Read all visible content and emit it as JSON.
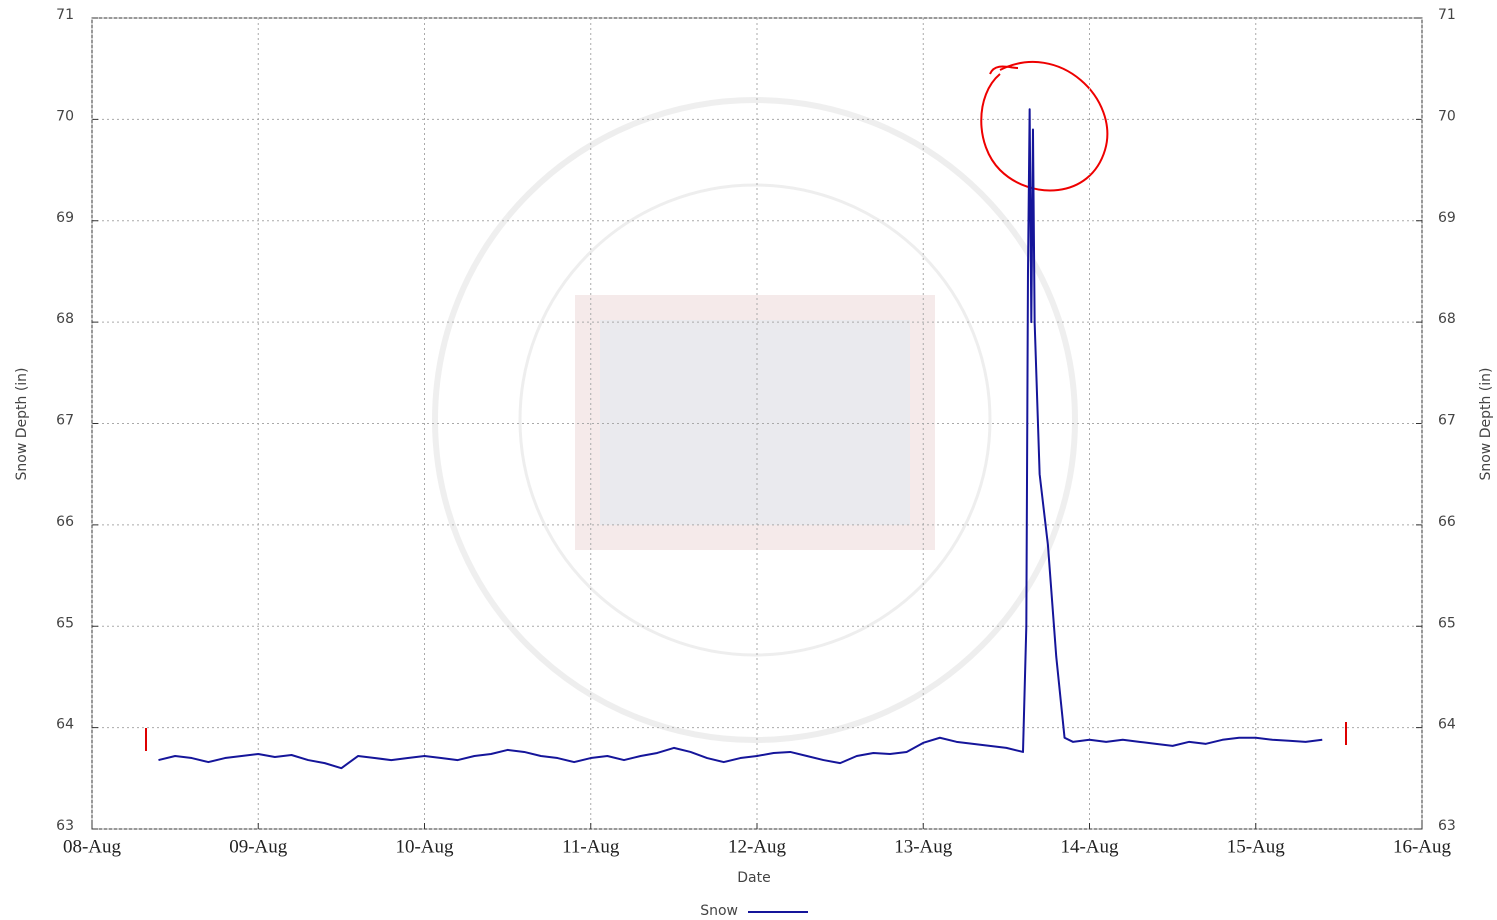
{
  "chart_data": {
    "type": "line",
    "xlabel": "Date",
    "ylabel": "Snow Depth (in)",
    "y2label": "Snow Depth (in)",
    "xlim": [
      8,
      16
    ],
    "xticks": [
      {
        "value": 8,
        "label": "08-Aug"
      },
      {
        "value": 9,
        "label": "09-Aug"
      },
      {
        "value": 10,
        "label": "10-Aug"
      },
      {
        "value": 11,
        "label": "11-Aug"
      },
      {
        "value": 12,
        "label": "12-Aug"
      },
      {
        "value": 13,
        "label": "13-Aug"
      },
      {
        "value": 14,
        "label": "14-Aug"
      },
      {
        "value": 15,
        "label": "15-Aug"
      },
      {
        "value": 16,
        "label": "16-Aug"
      }
    ],
    "ylim": [
      63,
      71
    ],
    "yticks": [
      63,
      64,
      65,
      66,
      67,
      68,
      69,
      70,
      71
    ],
    "y2lim": [
      63,
      71
    ],
    "y2ticks": [
      63,
      64,
      65,
      66,
      67,
      68,
      69,
      70,
      71
    ],
    "grid": true,
    "legend": "bottom",
    "x": [
      8.4,
      8.5,
      8.6,
      8.7,
      8.8,
      8.9,
      9.0,
      9.1,
      9.2,
      9.3,
      9.4,
      9.5,
      9.6,
      9.7,
      9.8,
      9.9,
      10.0,
      10.1,
      10.2,
      10.3,
      10.4,
      10.5,
      10.6,
      10.7,
      10.8,
      10.9,
      11.0,
      11.1,
      11.2,
      11.3,
      11.4,
      11.5,
      11.6,
      11.7,
      11.8,
      11.9,
      12.0,
      12.1,
      12.2,
      12.3,
      12.4,
      12.5,
      12.6,
      12.7,
      12.8,
      12.9,
      13.0,
      13.1,
      13.2,
      13.3,
      13.4,
      13.5,
      13.6,
      13.62,
      13.63,
      13.64,
      13.65,
      13.66,
      13.67,
      13.7,
      13.75,
      13.8,
      13.85,
      13.9,
      14.0,
      14.1,
      14.2,
      14.3,
      14.4,
      14.5,
      14.6,
      14.7,
      14.8,
      14.9,
      15.0,
      15.1,
      15.2,
      15.3,
      15.4
    ],
    "series": [
      {
        "name": "Snow",
        "color": "#15159a",
        "values": [
          63.68,
          63.72,
          63.7,
          63.66,
          63.7,
          63.72,
          63.74,
          63.71,
          63.73,
          63.68,
          63.65,
          63.6,
          63.72,
          63.7,
          63.68,
          63.7,
          63.72,
          63.7,
          63.68,
          63.72,
          63.74,
          63.78,
          63.76,
          63.72,
          63.7,
          63.66,
          63.7,
          63.72,
          63.68,
          63.72,
          63.75,
          63.8,
          63.76,
          63.7,
          63.66,
          63.7,
          63.72,
          63.75,
          63.76,
          63.72,
          63.68,
          63.65,
          63.72,
          63.75,
          63.74,
          63.76,
          63.85,
          63.9,
          63.86,
          63.84,
          63.82,
          63.8,
          63.76,
          65.0,
          68.5,
          70.1,
          68.0,
          69.9,
          68.0,
          66.5,
          65.8,
          64.7,
          63.9,
          63.86,
          63.88,
          63.86,
          63.88,
          63.86,
          63.84,
          63.82,
          63.86,
          63.84,
          63.88,
          63.9,
          63.9,
          63.88,
          63.87,
          63.86,
          63.88
        ]
      }
    ]
  }
}
